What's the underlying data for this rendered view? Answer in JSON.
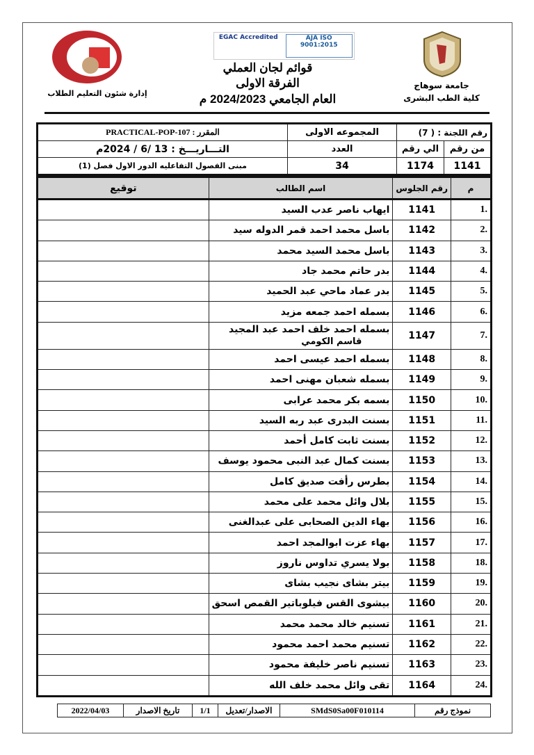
{
  "header": {
    "right_line1": "جامعة سوهاج",
    "right_line2": "كلية الطب البشرى",
    "left_caption": "إدارة شئون التعليم الطلاب",
    "left_logo_text": "جامعة سوهاج كلية الطب",
    "cert_logos": [
      "EGAC Accredited",
      "AJA ISO 9001:2015"
    ],
    "title1": "قوائم لجان العملي",
    "title2": "الفرقة الاولى",
    "title3": "العام الجامعي 2024/2023 م"
  },
  "info": {
    "committee": "رقم اللجنة : ( 7)",
    "group": "المجموعه الاولى",
    "course": "المقرر : PRACTICAL-POP-107",
    "from_label": "من رقم",
    "to_label": "الي رقم",
    "count_label": "العدد",
    "date": "التـــاريـــخ :  13 /6 / 2024م",
    "from_value": "1141",
    "to_value": "1174",
    "count_value": "34",
    "location": "مبنى الفصول التفاعليه الدور الاول فصل (1)"
  },
  "table": {
    "headers": {
      "index": "م",
      "seat": "رقم الجلوس",
      "name": "اسم الطالب",
      "signature": "توقيع"
    },
    "rows": [
      {
        "i": "1.",
        "seat": "1141",
        "name": "ايهاب ناصر عدب السيد"
      },
      {
        "i": "2.",
        "seat": "1142",
        "name": "باسل محمد احمد قمر الدوله سيد"
      },
      {
        "i": "3.",
        "seat": "1143",
        "name": "باسل محمد السيد محمد"
      },
      {
        "i": "4.",
        "seat": "1144",
        "name": "بدر حاتم محمد جاد"
      },
      {
        "i": "5.",
        "seat": "1145",
        "name": "بدر عماد ماحي عبد الحميد"
      },
      {
        "i": "6.",
        "seat": "1146",
        "name": "بسمله احمد جمعه مزيد"
      },
      {
        "i": "7.",
        "seat": "1147",
        "name": "بسمله احمد خلف  احمد عبد المجيد",
        "extra": "قاسم الكومي"
      },
      {
        "i": "8.",
        "seat": "1148",
        "name": "بسمله احمد عيسى احمد"
      },
      {
        "i": "9.",
        "seat": "1149",
        "name": "بسمله شعبان مهنى احمد"
      },
      {
        "i": "10.",
        "seat": "1150",
        "name": "بسمه بكر محمد عرابى"
      },
      {
        "i": "11.",
        "seat": "1151",
        "name": "بسنت البدرى عبد ربه السيد"
      },
      {
        "i": "12.",
        "seat": "1152",
        "name": "بسنت ثابت كامل أحمد"
      },
      {
        "i": "13.",
        "seat": "1153",
        "name": "بسنت كمال عبد النبى محمود يوسف"
      },
      {
        "i": "14.",
        "seat": "1154",
        "name": "بطرس رأفت صديق كامل"
      },
      {
        "i": "15.",
        "seat": "1155",
        "name": "بلال وائل محمد على محمد"
      },
      {
        "i": "16.",
        "seat": "1156",
        "name": "بهاء الدين الصحابى على عبدالغنى"
      },
      {
        "i": "17.",
        "seat": "1157",
        "name": "بهاء عزت ابوالمجد احمد"
      },
      {
        "i": "18.",
        "seat": "1158",
        "name": "بولا يسري تداوس ناروز"
      },
      {
        "i": "19.",
        "seat": "1159",
        "name": "بيتر بشاى نجيب بشاى"
      },
      {
        "i": "20.",
        "seat": "1160",
        "name": "بيشوى القس فيلوباتير القمص اسحق"
      },
      {
        "i": "21.",
        "seat": "1161",
        "name": "تسنيم خالد محمد محمد"
      },
      {
        "i": "22.",
        "seat": "1162",
        "name": "تسنيم محمد احمد محمود"
      },
      {
        "i": "23.",
        "seat": "1163",
        "name": "تسنيم ناصر خليفة محمود"
      },
      {
        "i": "24.",
        "seat": "1164",
        "name": "تقى وائل محمد خلف الله"
      }
    ]
  },
  "footer": {
    "form_label": "نموذج رقم",
    "form_code": "SMdS0Sa00F010114",
    "revision_label": "الاصدار/تعديل",
    "revision": "1/1",
    "issue_date_label": "تاريخ الاصدار",
    "issue_date": "2022/04/03"
  }
}
